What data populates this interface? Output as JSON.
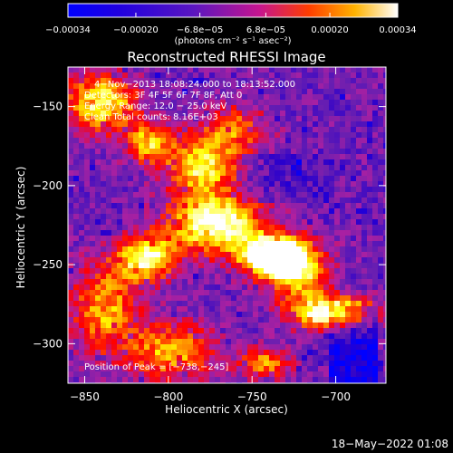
{
  "chart_data": {
    "type": "heatmap",
    "title": "Reconstructed RHESSI Image",
    "xlabel": "Heliocentric X (arcsec)",
    "ylabel": "Heliocentric Y (arcsec)",
    "xlim": [
      -860,
      -670
    ],
    "ylim": [
      -325,
      -125
    ],
    "x_ticks": [
      -850,
      -800,
      -750,
      -700
    ],
    "y_ticks": [
      -150,
      -200,
      -250,
      -300
    ],
    "x_tick_labels": [
      "−850",
      "−800",
      "−750",
      "−700"
    ],
    "y_tick_labels": [
      "−150",
      "−200",
      "−250",
      "−300"
    ],
    "colorbar": {
      "ticks": [
        -0.00034,
        -0.0002,
        -6.8e-05,
        6.8e-05,
        0.0002,
        0.00034
      ],
      "tick_labels": [
        "−0.00034",
        "−0.00020",
        "−6.8e−05",
        "6.8e−05",
        "0.00020",
        "0.00034"
      ],
      "unit_label": "(photons cm⁻² s⁻¹ asec⁻²)"
    },
    "annotations": {
      "time_range": "4−Nov−2013 18:08:24.000 to 18:13:52.000",
      "detectors": "Detectors: 3F 4F 5F 6F 7F 8F, Att 0",
      "energy_range": "Energy Range: 12.0 − 25.0 keV",
      "clean_counts": "Clean     Total counts: 8.16E+03",
      "peak_position": "Position of Peak = [−738,−245]"
    },
    "timestamp": "18−May−2022 01:08",
    "peak": {
      "x": -738,
      "y": -245
    }
  },
  "colors": {
    "background": "#000000",
    "axes": "#ffffff",
    "colormap": [
      "#0000ff",
      "#2a00cc",
      "#6a1fb0",
      "#b020a0",
      "#ff0000",
      "#ff8000",
      "#ffff00",
      "#ffffff"
    ]
  }
}
